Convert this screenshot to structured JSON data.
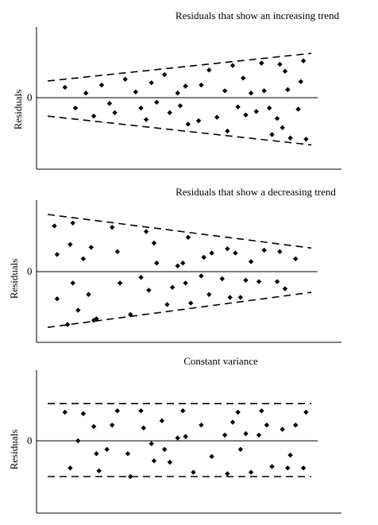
{
  "chart_data": [
    {
      "type": "scatter",
      "title": "Residuals that show an increasing trend",
      "ylabel": "Residuals",
      "zero_label": "0",
      "ylim": [
        -5,
        5
      ],
      "grid": false,
      "colors": {
        "points": "#000000",
        "axis": "#000000",
        "bounds": "#000000"
      },
      "envelope": {
        "style": "dashed",
        "upper_start": 1.45,
        "upper_end": 3.85,
        "lower_start": -1.6,
        "lower_end": -4.1
      },
      "points": [
        [
          6,
          0.9
        ],
        [
          10,
          -0.9
        ],
        [
          14,
          0.4
        ],
        [
          17,
          -1.6
        ],
        [
          20,
          1.1
        ],
        [
          23,
          -0.5
        ],
        [
          25,
          -1.3
        ],
        [
          29,
          1.6
        ],
        [
          33,
          0.5
        ],
        [
          35,
          -0.9
        ],
        [
          37,
          -1.9
        ],
        [
          39,
          1.3
        ],
        [
          41,
          -0.4
        ],
        [
          44,
          2.0
        ],
        [
          46,
          -1.3
        ],
        [
          49,
          0.4
        ],
        [
          50,
          -0.7
        ],
        [
          52,
          1.0
        ],
        [
          53,
          -2.3
        ],
        [
          57,
          -2.0
        ],
        [
          58,
          1.1
        ],
        [
          61,
          2.4
        ],
        [
          64,
          -1.7
        ],
        [
          67,
          0.6
        ],
        [
          68,
          -2.9
        ],
        [
          70,
          2.8
        ],
        [
          72,
          -0.8
        ],
        [
          74,
          1.7
        ],
        [
          75,
          -1.5
        ],
        [
          77,
          0.4
        ],
        [
          79,
          -1.2
        ],
        [
          81,
          3.0
        ],
        [
          82,
          0.6
        ],
        [
          84,
          -0.9
        ],
        [
          85,
          -3.2
        ],
        [
          87,
          -1.8
        ],
        [
          88,
          2.9
        ],
        [
          89,
          -2.6
        ],
        [
          90,
          2.3
        ],
        [
          91,
          0.7
        ],
        [
          92,
          -3.5
        ],
        [
          95,
          -1.0
        ],
        [
          96,
          1.4
        ],
        [
          97,
          3.2
        ],
        [
          98,
          -3.6
        ]
      ]
    },
    {
      "type": "scatter",
      "title": "Residuals that show a decreasing trend",
      "ylabel": "Residuals",
      "zero_label": "0",
      "ylim": [
        -5,
        5
      ],
      "grid": false,
      "colors": {
        "points": "#000000",
        "axis": "#000000",
        "bounds": "#000000"
      },
      "envelope": {
        "style": "dashed",
        "upper_start": 4.0,
        "upper_end": 1.65,
        "lower_start": -3.9,
        "lower_end": -1.45
      },
      "points": [
        [
          2,
          3.2
        ],
        [
          3,
          1.2
        ],
        [
          3,
          -1.9
        ],
        [
          7,
          -3.7
        ],
        [
          8,
          1.9
        ],
        [
          9,
          -0.8
        ],
        [
          9,
          3.4
        ],
        [
          11,
          -2.7
        ],
        [
          13,
          0.9
        ],
        [
          15,
          -1.6
        ],
        [
          16,
          1.7
        ],
        [
          17,
          -3.4
        ],
        [
          18,
          -3.3
        ],
        [
          24,
          3.1
        ],
        [
          26,
          1.4
        ],
        [
          27,
          -0.8
        ],
        [
          31,
          -3.0
        ],
        [
          35,
          -0.4
        ],
        [
          37,
          2.8
        ],
        [
          38,
          -1.3
        ],
        [
          40,
          2.0
        ],
        [
          41,
          0.6
        ],
        [
          45,
          -2.3
        ],
        [
          47,
          -1.1
        ],
        [
          49,
          0.4
        ],
        [
          51,
          0.6
        ],
        [
          52,
          -0.8
        ],
        [
          53,
          2.4
        ],
        [
          54,
          -2.2
        ],
        [
          58,
          -0.3
        ],
        [
          59,
          1.0
        ],
        [
          61,
          -1.6
        ],
        [
          62,
          1.3
        ],
        [
          66,
          -0.5
        ],
        [
          68,
          1.6
        ],
        [
          69,
          -1.8
        ],
        [
          71,
          1.3
        ],
        [
          73,
          -1.8
        ],
        [
          75,
          -0.6
        ],
        [
          77,
          0.7
        ],
        [
          80,
          -0.7
        ],
        [
          82,
          1.5
        ],
        [
          87,
          -0.7
        ],
        [
          88,
          1.4
        ],
        [
          90,
          -1.2
        ],
        [
          94,
          0.9
        ]
      ]
    },
    {
      "type": "scatter",
      "title": "Constant variance",
      "ylabel": "Residuals",
      "zero_label": "0",
      "ylim": [
        -5,
        5
      ],
      "grid": false,
      "colors": {
        "points": "#000000",
        "axis": "#000000",
        "bounds": "#000000"
      },
      "envelope": {
        "style": "dashed",
        "upper_start": 2.6,
        "upper_end": 2.6,
        "lower_start": -2.5,
        "lower_end": -2.5
      },
      "points": [
        [
          6,
          2.0
        ],
        [
          8,
          -1.9
        ],
        [
          11,
          0.0
        ],
        [
          13,
          1.9
        ],
        [
          17,
          1.0
        ],
        [
          18,
          -0.9
        ],
        [
          19,
          -2.1
        ],
        [
          22,
          -0.6
        ],
        [
          24,
          1.1
        ],
        [
          26,
          2.1
        ],
        [
          30,
          -0.9
        ],
        [
          31,
          -2.5
        ],
        [
          35,
          2.1
        ],
        [
          36,
          0.9
        ],
        [
          39,
          -0.2
        ],
        [
          40,
          -1.4
        ],
        [
          43,
          1.4
        ],
        [
          44,
          -0.6
        ],
        [
          46,
          -1.5
        ],
        [
          49,
          0.2
        ],
        [
          51,
          2.1
        ],
        [
          52,
          0.3
        ],
        [
          55,
          -2.2
        ],
        [
          58,
          1.1
        ],
        [
          62,
          -1.1
        ],
        [
          67,
          0.4
        ],
        [
          68,
          -2.3
        ],
        [
          70,
          1.3
        ],
        [
          72,
          2.0
        ],
        [
          73,
          -0.6
        ],
        [
          75,
          0.5
        ],
        [
          77,
          -2.2
        ],
        [
          80,
          0.4
        ],
        [
          81,
          2.1
        ],
        [
          83,
          1.1
        ],
        [
          85,
          -1.8
        ],
        [
          89,
          0.8
        ],
        [
          91,
          -1.9
        ],
        [
          92,
          -1.0
        ],
        [
          94,
          1.1
        ],
        [
          97,
          -1.9
        ],
        [
          98,
          2.0
        ]
      ]
    }
  ]
}
